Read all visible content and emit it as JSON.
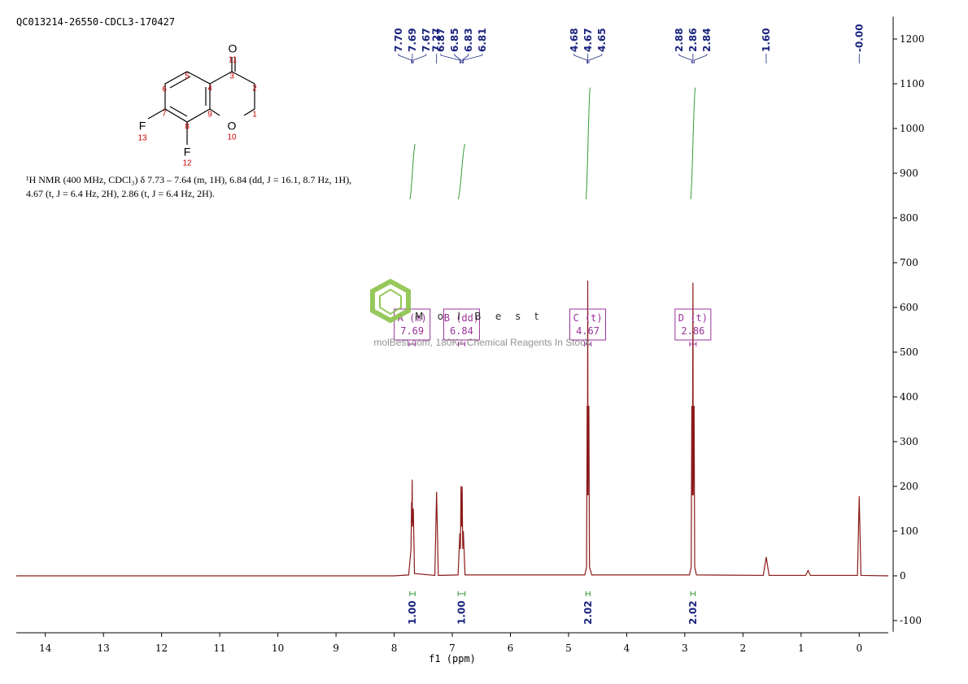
{
  "chart_data": {
    "type": "line",
    "title": "QC013214-26550-CDCL3-170427",
    "x_label": "f1 (ppm)",
    "color": "#8b1a1a",
    "x": [
      14.5,
      8.0,
      7.75,
      7.71,
      7.7,
      7.695,
      7.69,
      7.685,
      7.67,
      7.65,
      7.3,
      7.27,
      7.24,
      6.9,
      6.87,
      6.86,
      6.85,
      6.84,
      6.83,
      6.82,
      6.81,
      6.78,
      4.72,
      4.69,
      4.68,
      4.675,
      4.67,
      4.665,
      4.65,
      4.64,
      4.6,
      2.92,
      2.89,
      2.88,
      2.87,
      2.86,
      2.855,
      2.84,
      2.83,
      2.8,
      1.65,
      1.6,
      1.55,
      0.92,
      0.88,
      0.84,
      0.03,
      0.0,
      -0.03,
      -0.5
    ],
    "values": [
      0,
      0,
      2,
      60,
      165,
      120,
      215,
      110,
      150,
      5,
      1,
      188,
      1,
      2,
      95,
      60,
      200,
      110,
      200,
      60,
      100,
      2,
      2,
      20,
      380,
      180,
      660,
      180,
      380,
      20,
      2,
      2,
      20,
      380,
      180,
      655,
      180,
      380,
      20,
      2,
      1,
      42,
      1,
      1,
      12,
      1,
      1,
      178,
      1,
      0
    ],
    "xlim": [
      14.5,
      -0.5
    ],
    "xticks": [
      14,
      13,
      12,
      11,
      10,
      9,
      8,
      7,
      6,
      5,
      4,
      3,
      2,
      1,
      0
    ],
    "ylim": [
      -125,
      1250
    ],
    "yticks": [
      -100,
      0,
      100,
      200,
      300,
      400,
      500,
      600,
      700,
      800,
      900,
      1000,
      1100,
      1200
    ],
    "peak_labels": [
      {
        "value": 7.7,
        "label": "7.70"
      },
      {
        "value": 7.69,
        "label": "7.69"
      },
      {
        "value": 7.67,
        "label": "7.67"
      },
      {
        "value": 7.27,
        "label": "7.27"
      },
      {
        "value": 6.87,
        "label": "6.87"
      },
      {
        "value": 6.85,
        "label": "6.85"
      },
      {
        "value": 6.83,
        "label": "6.83"
      },
      {
        "value": 6.81,
        "label": "6.81"
      },
      {
        "value": 4.68,
        "label": "4.68"
      },
      {
        "value": 4.67,
        "label": "4.67"
      },
      {
        "value": 4.65,
        "label": "4.65"
      },
      {
        "value": 2.88,
        "label": "2.88"
      },
      {
        "value": 2.86,
        "label": "2.86"
      },
      {
        "value": 2.84,
        "label": "2.84"
      },
      {
        "value": 1.6,
        "label": "1.60"
      },
      {
        "value": 0,
        "label": "-0.00"
      }
    ],
    "integrals": {
      "ranges": [
        [
          7.73,
          7.64
        ],
        [
          6.9,
          6.78
        ],
        [
          4.7,
          4.63
        ],
        [
          2.9,
          2.82
        ]
      ],
      "values": [
        1,
        1,
        2.02,
        2.02
      ],
      "value_labels": [
        "1.00",
        "1.00",
        "2.02",
        "2.02"
      ]
    },
    "multiplets": [
      {
        "label": "A (m)",
        "shift": 7.69
      },
      {
        "label": "B (dd)",
        "shift": 6.84
      },
      {
        "label": "C (t)",
        "shift": 4.67
      },
      {
        "label": "D (t)",
        "shift": 2.86
      }
    ]
  },
  "structure": {
    "atoms": [
      {
        "symbol": "O",
        "locant": 11
      },
      {
        "symbol": "O",
        "locant": 10
      },
      {
        "symbol": "F",
        "locant": 13
      },
      {
        "symbol": "F",
        "locant": 12
      }
    ],
    "locants": [
      5,
      6,
      4,
      3,
      2,
      7,
      9,
      1,
      8
    ]
  },
  "nmr_text": [
    "¹H NMR (400 MHz, CDCl₃) δ 7.73 – 7.64 (m, 1H), 6.84 (dd, J = 16.1, 8.7 Hz, 1H),",
    "4.67 (t, J = 6.4 Hz, 2H), 2.86 (t, J = 6.4 Hz, 2H)."
  ],
  "watermark": {
    "brand": "MolBest",
    "tagline": "molBest.com, 180K+ Chemical Reagents In Stock."
  }
}
